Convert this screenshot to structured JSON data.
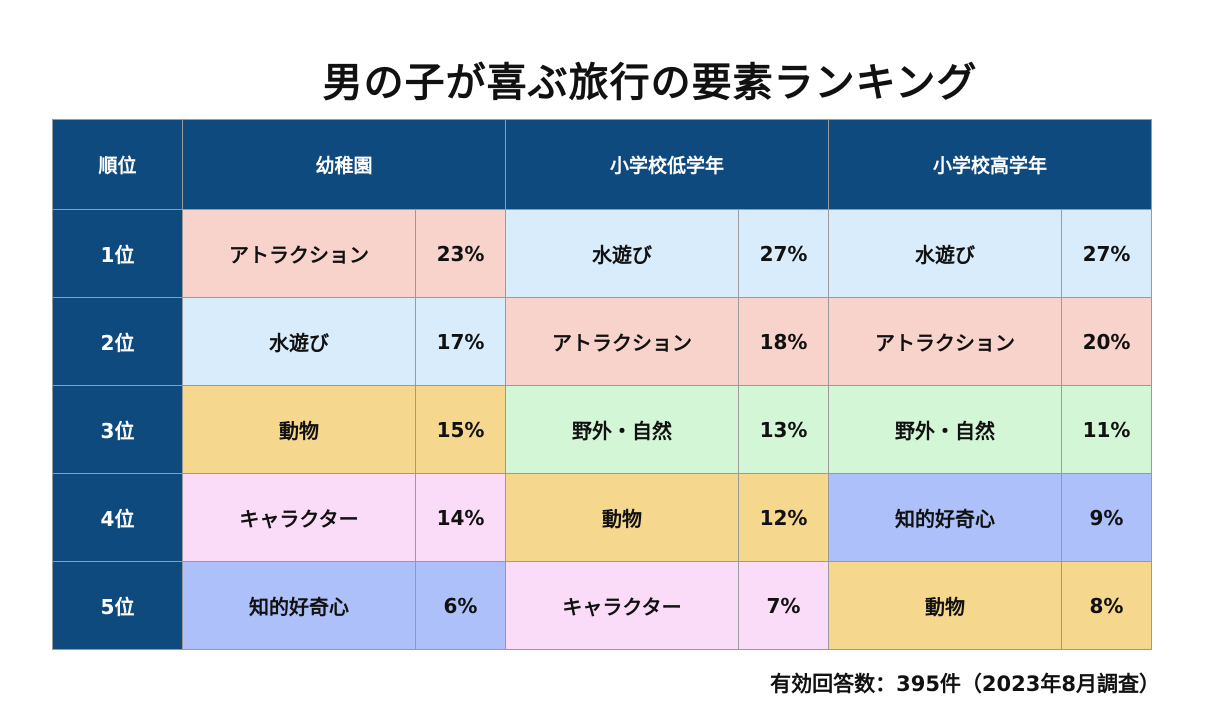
{
  "chart_data": {
    "type": "table",
    "title": "男の子が喜ぶ旅行の要素ランキング",
    "header_rank": "順位",
    "groups": [
      "幼稚園",
      "小学校低学年",
      "小学校高学年"
    ],
    "ranks": [
      "1位",
      "2位",
      "3位",
      "4位",
      "5位"
    ],
    "rows": [
      [
        {
          "item": "アトラクション",
          "pct": "23%",
          "value": 23
        },
        {
          "item": "水遊び",
          "pct": "27%",
          "value": 27
        },
        {
          "item": "水遊び",
          "pct": "27%",
          "value": 27
        }
      ],
      [
        {
          "item": "水遊び",
          "pct": "17%",
          "value": 17
        },
        {
          "item": "アトラクション",
          "pct": "18%",
          "value": 18
        },
        {
          "item": "アトラクション",
          "pct": "20%",
          "value": 20
        }
      ],
      [
        {
          "item": "動物",
          "pct": "15%",
          "value": 15
        },
        {
          "item": "野外・自然",
          "pct": "13%",
          "value": 13
        },
        {
          "item": "野外・自然",
          "pct": "11%",
          "value": 11
        }
      ],
      [
        {
          "item": "キャラクター",
          "pct": "14%",
          "value": 14
        },
        {
          "item": "動物",
          "pct": "12%",
          "value": 12
        },
        {
          "item": "知的好奇心",
          "pct": "9%",
          "value": 9
        }
      ],
      [
        {
          "item": "知的好奇心",
          "pct": "6%",
          "value": 6
        },
        {
          "item": "キャラクター",
          "pct": "7%",
          "value": 7
        },
        {
          "item": "動物",
          "pct": "8%",
          "value": 8
        }
      ]
    ],
    "category_colors": {
      "アトラクション": "#f8d3cb",
      "水遊び": "#d8ecfb",
      "動物": "#f5d78e",
      "野外・自然": "#d3f6d7",
      "キャラクター": "#fbdcf8",
      "知的好奇心": "#adc0fa"
    },
    "colors": {
      "header_bg": "#0e4a7e",
      "header_text": "#ffffff"
    },
    "footnote": "有効回答数：395件（2023年8月調査）"
  }
}
